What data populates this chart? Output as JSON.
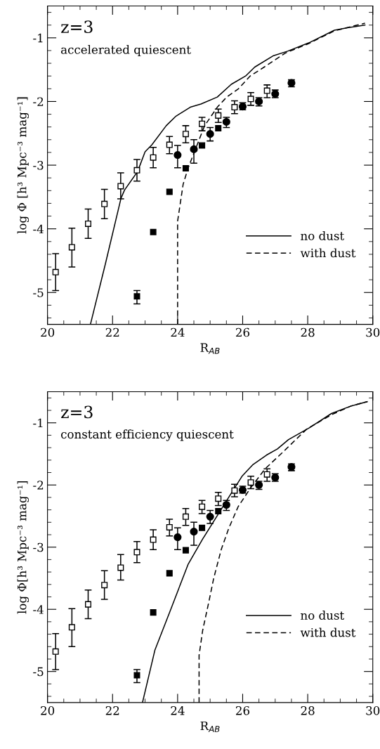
{
  "chart_data": [
    {
      "type": "scatter",
      "xlabel": "R$_{AB}$",
      "ylabel": "log Φ [h³ Mpc⁻³ mag⁻¹]",
      "annotations": [
        "z=3",
        "accelerated quiescent"
      ],
      "xlim": [
        20,
        30
      ],
      "xticks": [
        20,
        22,
        24,
        26,
        28,
        30
      ],
      "ylim": [
        -5.5,
        -0.5
      ],
      "yticks": [
        -5,
        -4,
        -3,
        -2,
        -1
      ],
      "grid": false,
      "legend": "bottom right",
      "series": [
        {
          "marker": "square",
          "color": "#ffffff",
          "x": [
            20.25,
            20.75,
            21.25,
            21.75,
            22.25,
            22.75,
            23.25,
            23.75,
            24.25,
            24.75,
            25.25,
            25.75,
            26.25,
            26.75
          ],
          "values": [
            -4.68,
            -4.29,
            -3.92,
            -3.61,
            -3.33,
            -3.08,
            -2.88,
            -2.68,
            -2.51,
            -2.35,
            -2.22,
            -2.09,
            -1.96,
            -1.83
          ],
          "errors": [
            [
              -4.97,
              -4.39
            ],
            [
              -4.6,
              -3.99
            ],
            [
              -4.15,
              -3.69
            ],
            [
              -3.84,
              -3.38
            ],
            [
              -3.53,
              -3.12
            ],
            [
              -3.25,
              -2.91
            ],
            [
              -3.04,
              -2.72
            ],
            [
              -2.82,
              -2.55
            ],
            [
              -2.65,
              -2.38
            ],
            [
              -2.46,
              -2.25
            ],
            [
              -2.33,
              -2.12
            ],
            [
              -2.19,
              -1.99
            ],
            [
              -2.06,
              -1.86
            ],
            [
              -1.94,
              -1.74
            ]
          ]
        },
        {
          "marker": "circle",
          "color": "#000000",
          "x": [
            24.0,
            24.5,
            25.0,
            25.5,
            26.0,
            26.5,
            27.0,
            27.5
          ],
          "values": [
            -2.84,
            -2.75,
            -2.51,
            -2.32,
            -2.08,
            -2.0,
            -1.88,
            -1.71
          ],
          "errors": [
            [
              -3.04,
              -2.69
            ],
            [
              -2.97,
              -2.6
            ],
            [
              -2.62,
              -2.41
            ],
            [
              -2.41,
              -2.25
            ],
            [
              -2.13,
              -2.02
            ],
            [
              -2.07,
              -1.94
            ],
            [
              -1.94,
              -1.82
            ],
            [
              -1.77,
              -1.66
            ]
          ]
        },
        {
          "marker": "square",
          "color": "#000000",
          "x": [
            22.75,
            23.25,
            23.75,
            24.25,
            24.75,
            25.25
          ],
          "values": [
            -5.06,
            -4.05,
            -3.42,
            -3.05,
            -2.69,
            -2.42
          ],
          "errors": [
            [
              -5.18,
              -4.97
            ],
            null,
            null,
            null,
            null,
            null
          ]
        },
        {
          "type": "line",
          "name": "no dust",
          "line_style": "solid",
          "color": "#000000",
          "x": [
            21.32,
            21.78,
            22.26,
            22.37,
            22.77,
            23.0,
            23.21,
            23.65,
            23.95,
            24.39,
            24.72,
            25.22,
            25.65,
            26.09,
            26.37,
            26.95,
            27.38,
            28.03,
            28.82,
            29.25,
            29.76
          ],
          "values": [
            -5.5,
            -4.55,
            -3.52,
            -3.39,
            -3.1,
            -2.79,
            -2.68,
            -2.38,
            -2.23,
            -2.09,
            -2.04,
            -1.93,
            -1.73,
            -1.6,
            -1.46,
            -1.28,
            -1.21,
            -1.08,
            -0.88,
            -0.84,
            -0.8
          ]
        },
        {
          "type": "line",
          "name": "with dust",
          "line_style": "dashed",
          "color": "#000000",
          "x": [
            24.0,
            24.0,
            24.17,
            24.32,
            24.54,
            24.83,
            25.22,
            25.51,
            25.87,
            26.23,
            26.66,
            27.31,
            28.03,
            28.82,
            29.76
          ],
          "values": [
            -5.5,
            -3.88,
            -3.3,
            -3.05,
            -2.76,
            -2.38,
            -2.09,
            -1.93,
            -1.8,
            -1.6,
            -1.46,
            -1.24,
            -1.09,
            -0.89,
            -0.77
          ]
        }
      ]
    },
    {
      "type": "scatter",
      "xlabel": "R$_{AB}$",
      "ylabel": "log Φ[h³ Mpc⁻³ mag⁻¹]",
      "annotations": [
        "z=3",
        "constant efficiency quiescent"
      ],
      "xlim": [
        20,
        30
      ],
      "xticks": [
        20,
        22,
        24,
        26,
        28,
        30
      ],
      "ylim": [
        -5.5,
        -0.5
      ],
      "yticks": [
        -5,
        -4,
        -3,
        -2,
        -1
      ],
      "grid": false,
      "legend": "bottom right",
      "series": [
        {
          "marker": "square",
          "color": "#ffffff",
          "x": [
            20.25,
            20.75,
            21.25,
            21.75,
            22.25,
            22.75,
            23.25,
            23.75,
            24.25,
            24.75,
            25.25,
            25.75,
            26.25,
            26.75
          ],
          "values": [
            -4.68,
            -4.29,
            -3.92,
            -3.61,
            -3.33,
            -3.08,
            -2.88,
            -2.68,
            -2.51,
            -2.35,
            -2.22,
            -2.09,
            -1.96,
            -1.83
          ],
          "errors": [
            [
              -4.97,
              -4.39
            ],
            [
              -4.6,
              -3.99
            ],
            [
              -4.15,
              -3.69
            ],
            [
              -3.84,
              -3.38
            ],
            [
              -3.53,
              -3.12
            ],
            [
              -3.25,
              -2.91
            ],
            [
              -3.04,
              -2.72
            ],
            [
              -2.82,
              -2.55
            ],
            [
              -2.65,
              -2.38
            ],
            [
              -2.46,
              -2.25
            ],
            [
              -2.33,
              -2.12
            ],
            [
              -2.19,
              -1.99
            ],
            [
              -2.06,
              -1.86
            ],
            [
              -1.94,
              -1.74
            ]
          ]
        },
        {
          "marker": "circle",
          "color": "#000000",
          "x": [
            24.0,
            24.5,
            25.0,
            25.5,
            26.0,
            26.5,
            27.0,
            27.5
          ],
          "values": [
            -2.84,
            -2.75,
            -2.51,
            -2.32,
            -2.08,
            -2.0,
            -1.88,
            -1.71
          ],
          "errors": [
            [
              -3.04,
              -2.69
            ],
            [
              -2.97,
              -2.6
            ],
            [
              -2.62,
              -2.41
            ],
            [
              -2.41,
              -2.25
            ],
            [
              -2.13,
              -2.02
            ],
            [
              -2.07,
              -1.94
            ],
            [
              -1.94,
              -1.82
            ],
            [
              -1.77,
              -1.66
            ]
          ]
        },
        {
          "marker": "square",
          "color": "#000000",
          "x": [
            22.75,
            23.25,
            23.75,
            24.25,
            24.75,
            25.25
          ],
          "values": [
            -5.06,
            -4.05,
            -3.42,
            -3.05,
            -2.69,
            -2.42
          ],
          "errors": [
            [
              -5.18,
              -4.97
            ],
            null,
            null,
            null,
            null,
            null
          ]
        },
        {
          "type": "line",
          "name": "no dust",
          "line_style": "solid",
          "color": "#000000",
          "x": [
            22.92,
            23.3,
            23.79,
            24.32,
            24.77,
            25.27,
            25.57,
            25.98,
            26.32,
            26.73,
            27.07,
            27.41,
            28.05,
            28.73,
            29.33,
            29.83
          ],
          "values": [
            -5.5,
            -4.66,
            -4.0,
            -3.28,
            -2.87,
            -2.45,
            -2.2,
            -1.86,
            -1.67,
            -1.52,
            -1.42,
            -1.27,
            -1.08,
            -0.85,
            -0.73,
            -0.66
          ]
        },
        {
          "type": "line",
          "name": "with dust",
          "line_style": "dashed",
          "color": "#000000",
          "x": [
            24.66,
            24.66,
            24.77,
            24.96,
            25.11,
            25.34,
            25.57,
            25.86,
            26.24,
            26.69,
            27.22,
            27.97,
            28.73,
            29.33,
            29.83
          ],
          "values": [
            -5.5,
            -4.74,
            -4.34,
            -3.88,
            -3.5,
            -3.04,
            -2.7,
            -2.35,
            -2.05,
            -1.74,
            -1.48,
            -1.1,
            -0.87,
            -0.73,
            -0.66
          ]
        }
      ]
    }
  ]
}
